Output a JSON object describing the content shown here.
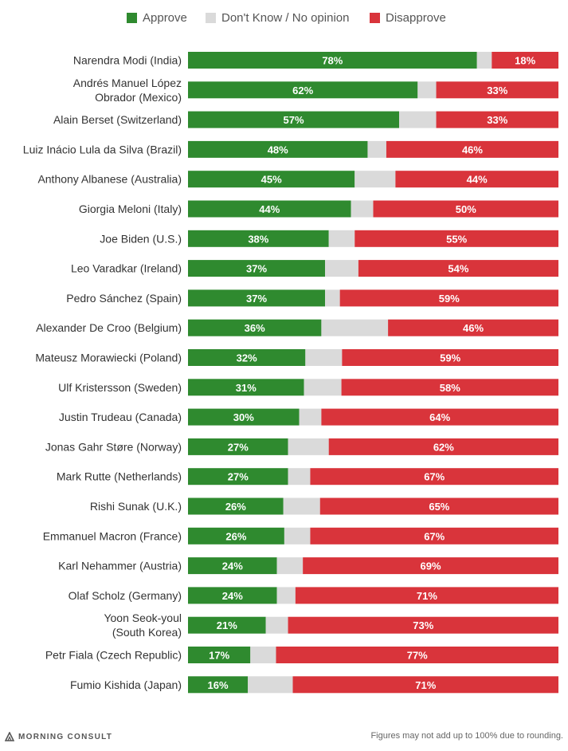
{
  "colors": {
    "approve": "#2f8a2f",
    "dontknow": "#dadada",
    "disapprove": "#d9343b"
  },
  "legend": [
    {
      "key": "approve",
      "label": "Approve"
    },
    {
      "key": "dontknow",
      "label": "Don't Know / No opinion"
    },
    {
      "key": "disapprove",
      "label": "Disapprove"
    }
  ],
  "chart_data": {
    "type": "bar",
    "orientation": "horizontal",
    "stacked": true,
    "legend_position": "top-center",
    "grid": false,
    "xlim": [
      0,
      100
    ],
    "categories": [
      [
        "Narendra Modi (India)"
      ],
      [
        "Andrés Manuel López",
        "Obrador (Mexico)"
      ],
      [
        "Alain Berset (Switzerland)"
      ],
      [
        "Luiz Inácio Lula da Silva (Brazil)"
      ],
      [
        "Anthony Albanese (Australia)"
      ],
      [
        "Giorgia Meloni (Italy)"
      ],
      [
        "Joe Biden (U.S.)"
      ],
      [
        "Leo Varadkar (Ireland)"
      ],
      [
        "Pedro Sánchez (Spain)"
      ],
      [
        "Alexander De Croo (Belgium)"
      ],
      [
        "Mateusz Morawiecki (Poland)"
      ],
      [
        "Ulf Kristersson (Sweden)"
      ],
      [
        "Justin Trudeau (Canada)"
      ],
      [
        "Jonas Gahr Støre (Norway)"
      ],
      [
        "Mark Rutte (Netherlands)"
      ],
      [
        "Rishi Sunak (U.K.)"
      ],
      [
        "Emmanuel Macron (France)"
      ],
      [
        "Karl Nehammer (Austria)"
      ],
      [
        "Olaf Scholz (Germany)"
      ],
      [
        "Yoon Seok-youl",
        "(South Korea)"
      ],
      [
        "Petr Fiala (Czech Republic)"
      ],
      [
        "Fumio Kishida (Japan)"
      ]
    ],
    "series": [
      {
        "name": "Approve",
        "key": "approve",
        "values": [
          78,
          62,
          57,
          48,
          45,
          44,
          38,
          37,
          37,
          36,
          32,
          31,
          30,
          27,
          27,
          26,
          26,
          24,
          24,
          21,
          17,
          16
        ]
      },
      {
        "name": "Don't Know / No opinion",
        "key": "dontknow",
        "values": [
          4,
          5,
          10,
          5,
          11,
          6,
          7,
          9,
          4,
          18,
          10,
          10,
          6,
          11,
          6,
          10,
          7,
          7,
          5,
          6,
          7,
          12
        ]
      },
      {
        "name": "Disapprove",
        "key": "disapprove",
        "values": [
          18,
          33,
          33,
          46,
          44,
          50,
          55,
          54,
          59,
          46,
          59,
          58,
          64,
          62,
          67,
          65,
          67,
          69,
          71,
          73,
          77,
          71
        ]
      }
    ],
    "labeled_series": [
      "approve",
      "disapprove"
    ],
    "label_suffix": "%"
  },
  "footer": {
    "logo_text": "MORNING CONSULT",
    "note": "Figures may not add up to 100% due to rounding."
  }
}
